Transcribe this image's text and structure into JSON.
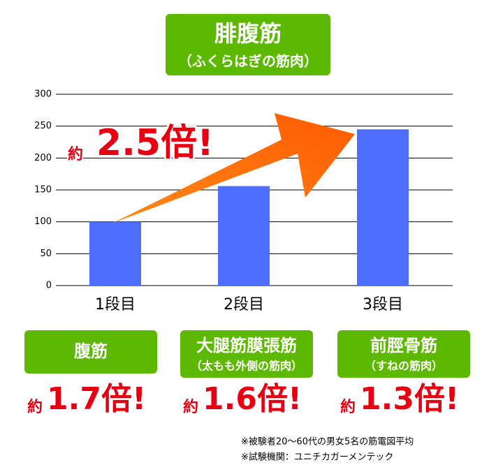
{
  "chart_data": {
    "type": "bar",
    "title": "腓腹筋",
    "subtitle": "（ふくらはぎの筋肉）",
    "annotation": {
      "prefix": "約",
      "text": "2.5倍!"
    },
    "categories": [
      "1段目",
      "2段目",
      "3段目"
    ],
    "values": [
      100,
      156,
      245
    ],
    "color": "#4d6dff",
    "ylim": [
      0,
      300
    ],
    "yticks": [
      0,
      50,
      100,
      150,
      200,
      250,
      300
    ],
    "grid": true
  },
  "panels": [
    {
      "title": "腹筋",
      "prefix": "約",
      "ratio": "1.7倍!"
    },
    {
      "title": "大腿筋膜張筋",
      "subtitle": "（太もも外側の筋肉）",
      "prefix": "約",
      "ratio": "1.6倍!"
    },
    {
      "title": "前脛骨筋",
      "subtitle": "（すねの筋肉）",
      "prefix": "約",
      "ratio": "1.3倍!"
    }
  ],
  "notes": [
    "※被験者20～60代の男女5名の筋電図平均",
    "※試験機関：ユニチカガーメンテック"
  ]
}
